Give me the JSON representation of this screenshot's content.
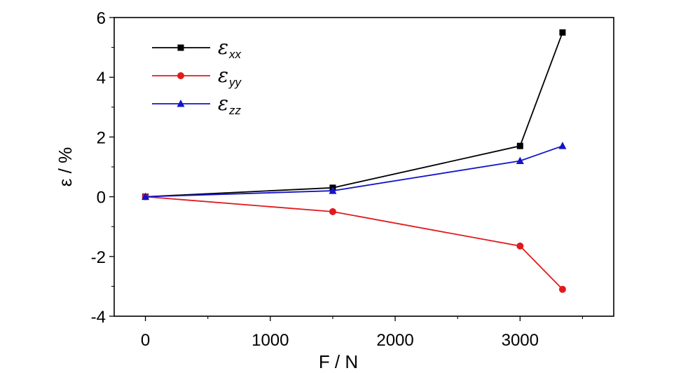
{
  "chart_data": {
    "type": "line",
    "xlabel": "F / N",
    "ylabel": "ε / %",
    "xlim": [
      -250,
      3750
    ],
    "ylim": [
      -4,
      6
    ],
    "xticks": [
      0,
      1000,
      2000,
      3000
    ],
    "xtick_labels": [
      "0",
      "1000",
      "2000",
      "3000"
    ],
    "yticks": [
      -4,
      -2,
      0,
      2,
      4,
      6
    ],
    "ytick_labels": [
      "-4",
      "-2",
      "0",
      "2",
      "4",
      "6"
    ],
    "grid": false,
    "legend_position": "top-left",
    "x": [
      0,
      1500,
      3000,
      3340
    ],
    "series": [
      {
        "name": "ε_xx",
        "symbol": "ε",
        "subscript": "xx",
        "color": "#000000",
        "marker": "square",
        "values": [
          0,
          0.3,
          1.7,
          5.5
        ]
      },
      {
        "name": "ε_yy",
        "symbol": "ε",
        "subscript": "yy",
        "color": "#e3191c",
        "marker": "circle",
        "values": [
          0,
          -0.5,
          -1.65,
          -3.1
        ]
      },
      {
        "name": "ε_zz",
        "symbol": "ε",
        "subscript": "zz",
        "color": "#1414c8",
        "marker": "triangle",
        "values": [
          0,
          0.2,
          1.2,
          1.7
        ]
      }
    ]
  }
}
